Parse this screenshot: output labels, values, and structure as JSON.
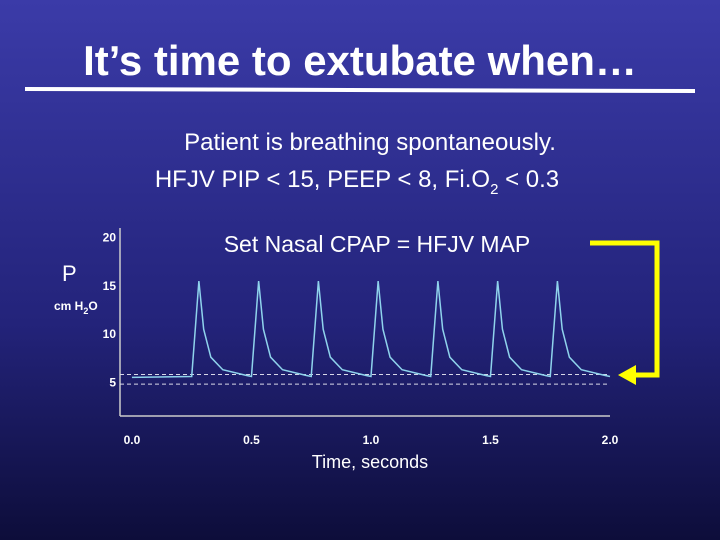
{
  "slide": {
    "title": "It’s time to extubate when…",
    "line1": "Patient is breathing spontaneously.",
    "line2": [
      "HFJV PIP < 15, PEEP < 8, Fi.O",
      "2",
      " < 0.3"
    ]
  },
  "chart_data": {
    "type": "line",
    "annotation": "Set Nasal CPAP = HFJV MAP",
    "y_label": "P",
    "y_unit": [
      "cm  H",
      "2",
      "O"
    ],
    "x_label": "Time, seconds",
    "x": [
      0,
      0.25,
      0.28,
      0.3,
      0.33,
      0.38,
      0.48,
      0.5,
      0.53,
      0.55,
      0.58,
      0.63,
      0.73,
      0.75,
      0.78,
      0.8,
      0.83,
      0.88,
      0.98,
      1.0,
      1.03,
      1.05,
      1.08,
      1.13,
      1.23,
      1.25,
      1.28,
      1.3,
      1.33,
      1.38,
      1.48,
      1.5,
      1.53,
      1.55,
      1.58,
      1.63,
      1.73,
      1.75,
      1.78,
      1.8,
      1.83,
      1.88,
      1.98,
      2.0
    ],
    "series": [
      {
        "color": "#8fd3ec",
        "values": [
          5.5,
          5.6,
          15.5,
          10.5,
          7.6,
          6.3,
          5.7,
          5.6,
          15.5,
          10.5,
          7.6,
          6.3,
          5.7,
          5.6,
          15.5,
          10.5,
          7.6,
          6.3,
          5.7,
          5.6,
          15.5,
          10.5,
          7.6,
          6.3,
          5.7,
          5.6,
          15.5,
          10.5,
          7.6,
          6.3,
          5.7,
          5.6,
          15.5,
          10.5,
          7.6,
          6.3,
          5.7,
          5.6,
          15.5,
          10.5,
          7.6,
          6.3,
          5.7,
          5.6
        ]
      }
    ],
    "reference_lines": [
      5.8,
      4.8
    ],
    "xlim": [
      -0.05,
      2.0
    ],
    "ylim": [
      1.5,
      21
    ],
    "xticks": [
      {
        "value": 0,
        "label": "0.0"
      },
      {
        "value": 0.5,
        "label": "0.5"
      },
      {
        "value": 1.0,
        "label": "1.0"
      },
      {
        "value": 1.5,
        "label": "1.5"
      },
      {
        "value": 2.0,
        "label": "2.0"
      }
    ],
    "yticks": [
      5,
      10,
      15,
      20
    ]
  }
}
